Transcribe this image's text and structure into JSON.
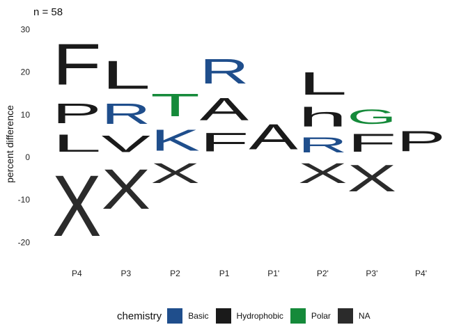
{
  "chart_data": {
    "type": "sequence-logo",
    "title": "n = 58",
    "xlabel": "",
    "ylabel": "percent difference",
    "ylim": [
      -25,
      32
    ],
    "yticks": [
      -20,
      -10,
      0,
      10,
      20,
      30
    ],
    "positions": [
      "P4",
      "P3",
      "P2",
      "P1",
      "P1'",
      "P2'",
      "P3'",
      "P4'"
    ],
    "legend": {
      "title": "chemistry",
      "entries": [
        {
          "name": "Basic",
          "color": "#1f4e8c"
        },
        {
          "name": "Hydrophobic",
          "color": "#1a1a1a"
        },
        {
          "name": "Polar",
          "color": "#158a3a"
        },
        {
          "name": "NA",
          "color": "#2b2b2b"
        }
      ]
    },
    "stacks": [
      {
        "position": "P4",
        "letters": [
          {
            "letter": "L",
            "from": 0,
            "to": 6.5,
            "chemistry": "Hydrophobic"
          },
          {
            "letter": "P",
            "from": 6.5,
            "to": 14,
            "chemistry": "Hydrophobic"
          },
          {
            "letter": "F",
            "from": 14,
            "to": 29.5,
            "chemistry": "Hydrophobic"
          },
          {
            "letter": "X",
            "from": -23,
            "to": 0,
            "chemistry": "NA"
          }
        ]
      },
      {
        "position": "P3",
        "letters": [
          {
            "letter": "V",
            "from": 0,
            "to": 6.3,
            "chemistry": "Hydrophobic"
          },
          {
            "letter": "R",
            "from": 6.3,
            "to": 14,
            "chemistry": "Basic"
          },
          {
            "letter": "L",
            "from": 14,
            "to": 24.5,
            "chemistry": "Hydrophobic"
          },
          {
            "letter": "X",
            "from": -15,
            "to": 0,
            "chemistry": "NA"
          }
        ]
      },
      {
        "position": "P2",
        "letters": [
          {
            "letter": "K",
            "from": 0,
            "to": 8,
            "chemistry": "Basic"
          },
          {
            "letter": "T",
            "from": 8,
            "to": 16.5,
            "chemistry": "Polar"
          },
          {
            "letter": "X",
            "from": -7.5,
            "to": 0,
            "chemistry": "NA"
          }
        ]
      },
      {
        "position": "P1",
        "letters": [
          {
            "letter": "F",
            "from": 0,
            "to": 7,
            "chemistry": "Hydrophobic"
          },
          {
            "letter": "A",
            "from": 7,
            "to": 15.5,
            "chemistry": "Hydrophobic"
          },
          {
            "letter": "R",
            "from": 15.5,
            "to": 24.8,
            "chemistry": "Basic"
          }
        ]
      },
      {
        "position": "P1'",
        "letters": [
          {
            "letter": "A",
            "from": 0,
            "to": 9.5,
            "chemistry": "Hydrophobic"
          }
        ]
      },
      {
        "position": "P2'",
        "letters": [
          {
            "letter": "R",
            "from": 0,
            "to": 5.8,
            "chemistry": "Basic"
          },
          {
            "letter": "h",
            "from": 5.8,
            "to": 13,
            "chemistry": "Hydrophobic"
          },
          {
            "letter": "L",
            "from": 13,
            "to": 21.5,
            "chemistry": "Hydrophobic"
          },
          {
            "letter": "X",
            "from": -7.5,
            "to": 0,
            "chemistry": "NA"
          }
        ]
      },
      {
        "position": "P3'",
        "letters": [
          {
            "letter": "F",
            "from": 0,
            "to": 6.8,
            "chemistry": "Hydrophobic"
          },
          {
            "letter": "G",
            "from": 6.8,
            "to": 12.3,
            "chemistry": "Polar"
          },
          {
            "letter": "X",
            "from": -10,
            "to": 0,
            "chemistry": "NA"
          }
        ]
      },
      {
        "position": "P4'",
        "letters": [
          {
            "letter": "P",
            "from": 0,
            "to": 7.6,
            "chemistry": "Hydrophobic"
          }
        ]
      }
    ]
  }
}
